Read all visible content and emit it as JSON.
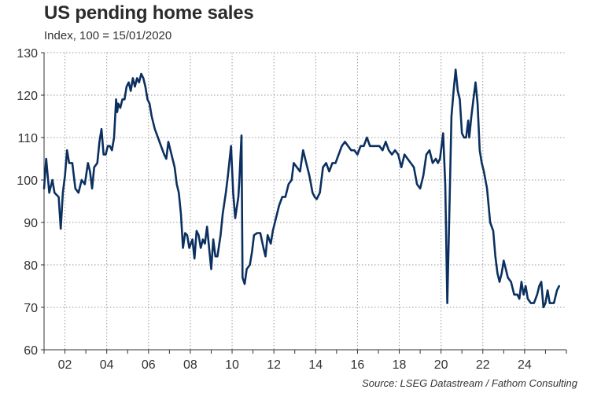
{
  "chart_data": {
    "type": "line",
    "title": "US pending home sales",
    "subtitle": "Index, 100 = 15/01/2020",
    "source": "Source: LSEG Datastream / Fathom Consulting",
    "xlabel": "",
    "ylabel": "",
    "ylim": [
      60,
      130
    ],
    "y_ticks": [
      60,
      70,
      80,
      90,
      100,
      110,
      120,
      130
    ],
    "x_range": [
      2001,
      2026
    ],
    "x_ticks": [
      {
        "value": 2002,
        "label": "02"
      },
      {
        "value": 2004,
        "label": "04"
      },
      {
        "value": 2006,
        "label": "06"
      },
      {
        "value": 2008,
        "label": "08"
      },
      {
        "value": 2010,
        "label": "10"
      },
      {
        "value": 2012,
        "label": "12"
      },
      {
        "value": 2014,
        "label": "14"
      },
      {
        "value": 2016,
        "label": "16"
      },
      {
        "value": 2018,
        "label": "18"
      },
      {
        "value": 2020,
        "label": "20"
      },
      {
        "value": 2022,
        "label": "22"
      },
      {
        "value": 2024,
        "label": "24"
      }
    ],
    "grid": true,
    "line_color": "#0b3060",
    "series": [
      {
        "name": "US pending home sales",
        "points": [
          [
            2001.0,
            98
          ],
          [
            2001.1,
            105
          ],
          [
            2001.25,
            97
          ],
          [
            2001.4,
            100
          ],
          [
            2001.5,
            97
          ],
          [
            2001.7,
            96
          ],
          [
            2001.8,
            88.5
          ],
          [
            2001.9,
            97
          ],
          [
            2002.0,
            101
          ],
          [
            2002.1,
            107
          ],
          [
            2002.2,
            104
          ],
          [
            2002.35,
            104
          ],
          [
            2002.5,
            98
          ],
          [
            2002.65,
            97
          ],
          [
            2002.8,
            100
          ],
          [
            2002.95,
            99
          ],
          [
            2003.1,
            104
          ],
          [
            2003.2,
            102
          ],
          [
            2003.3,
            98
          ],
          [
            2003.4,
            103
          ],
          [
            2003.55,
            104
          ],
          [
            2003.65,
            109
          ],
          [
            2003.75,
            112
          ],
          [
            2003.85,
            106
          ],
          [
            2003.95,
            106
          ],
          [
            2004.05,
            108
          ],
          [
            2004.15,
            108
          ],
          [
            2004.25,
            107
          ],
          [
            2004.35,
            110
          ],
          [
            2004.45,
            119
          ],
          [
            2004.5,
            116
          ],
          [
            2004.55,
            118
          ],
          [
            2004.65,
            117
          ],
          [
            2004.75,
            119
          ],
          [
            2004.85,
            119
          ],
          [
            2004.95,
            122
          ],
          [
            2005.05,
            123
          ],
          [
            2005.15,
            121
          ],
          [
            2005.25,
            124
          ],
          [
            2005.35,
            122
          ],
          [
            2005.45,
            124
          ],
          [
            2005.55,
            123
          ],
          [
            2005.65,
            125
          ],
          [
            2005.75,
            124
          ],
          [
            2005.85,
            122
          ],
          [
            2005.95,
            119
          ],
          [
            2006.05,
            118
          ],
          [
            2006.15,
            115
          ],
          [
            2006.3,
            112
          ],
          [
            2006.45,
            110
          ],
          [
            2006.6,
            108
          ],
          [
            2006.75,
            106
          ],
          [
            2006.85,
            105
          ],
          [
            2006.95,
            109
          ],
          [
            2007.1,
            106
          ],
          [
            2007.25,
            103
          ],
          [
            2007.35,
            99
          ],
          [
            2007.45,
            97
          ],
          [
            2007.55,
            92
          ],
          [
            2007.65,
            84
          ],
          [
            2007.75,
            87.5
          ],
          [
            2007.85,
            87
          ],
          [
            2007.95,
            84
          ],
          [
            2008.1,
            86
          ],
          [
            2008.2,
            81.5
          ],
          [
            2008.3,
            88
          ],
          [
            2008.4,
            87
          ],
          [
            2008.5,
            84
          ],
          [
            2008.6,
            86
          ],
          [
            2008.7,
            85
          ],
          [
            2008.8,
            89
          ],
          [
            2008.9,
            84
          ],
          [
            2009.0,
            79
          ],
          [
            2009.1,
            86
          ],
          [
            2009.2,
            82
          ],
          [
            2009.3,
            82
          ],
          [
            2009.45,
            87
          ],
          [
            2009.55,
            92
          ],
          [
            2009.7,
            97
          ],
          [
            2009.8,
            101
          ],
          [
            2009.95,
            108
          ],
          [
            2010.05,
            97
          ],
          [
            2010.15,
            91
          ],
          [
            2010.3,
            96
          ],
          [
            2010.35,
            100
          ],
          [
            2010.45,
            110.5
          ],
          [
            2010.5,
            77
          ],
          [
            2010.6,
            75.5
          ],
          [
            2010.7,
            79
          ],
          [
            2010.85,
            80
          ],
          [
            2010.95,
            83
          ],
          [
            2011.05,
            87
          ],
          [
            2011.2,
            87.5
          ],
          [
            2011.35,
            87.5
          ],
          [
            2011.5,
            84
          ],
          [
            2011.6,
            82
          ],
          [
            2011.7,
            87
          ],
          [
            2011.85,
            85
          ],
          [
            2011.95,
            88
          ],
          [
            2012.1,
            91
          ],
          [
            2012.25,
            94
          ],
          [
            2012.4,
            96
          ],
          [
            2012.55,
            96
          ],
          [
            2012.7,
            99
          ],
          [
            2012.85,
            100
          ],
          [
            2012.95,
            104
          ],
          [
            2013.1,
            103
          ],
          [
            2013.25,
            102
          ],
          [
            2013.4,
            107
          ],
          [
            2013.55,
            104
          ],
          [
            2013.7,
            101
          ],
          [
            2013.85,
            97
          ],
          [
            2013.95,
            96
          ],
          [
            2014.05,
            95.5
          ],
          [
            2014.2,
            97
          ],
          [
            2014.35,
            103
          ],
          [
            2014.5,
            104
          ],
          [
            2014.65,
            102
          ],
          [
            2014.8,
            104
          ],
          [
            2014.95,
            104
          ],
          [
            2015.1,
            106
          ],
          [
            2015.25,
            108
          ],
          [
            2015.4,
            109
          ],
          [
            2015.55,
            108
          ],
          [
            2015.7,
            107
          ],
          [
            2015.85,
            107
          ],
          [
            2016.0,
            106
          ],
          [
            2016.15,
            108
          ],
          [
            2016.3,
            108
          ],
          [
            2016.45,
            110
          ],
          [
            2016.6,
            108
          ],
          [
            2016.75,
            108
          ],
          [
            2016.9,
            108
          ],
          [
            2017.05,
            108
          ],
          [
            2017.2,
            107
          ],
          [
            2017.35,
            109
          ],
          [
            2017.5,
            107
          ],
          [
            2017.65,
            106
          ],
          [
            2017.8,
            107
          ],
          [
            2017.95,
            106
          ],
          [
            2018.1,
            103
          ],
          [
            2018.25,
            106
          ],
          [
            2018.4,
            105
          ],
          [
            2018.55,
            104
          ],
          [
            2018.7,
            103
          ],
          [
            2018.85,
            99
          ],
          [
            2019.0,
            98
          ],
          [
            2019.15,
            101
          ],
          [
            2019.3,
            106
          ],
          [
            2019.45,
            107
          ],
          [
            2019.6,
            104
          ],
          [
            2019.75,
            105
          ],
          [
            2019.85,
            104
          ],
          [
            2019.95,
            105
          ],
          [
            2020.1,
            111
          ],
          [
            2020.2,
            99
          ],
          [
            2020.3,
            71
          ],
          [
            2020.4,
            93
          ],
          [
            2020.5,
            115
          ],
          [
            2020.6,
            121
          ],
          [
            2020.7,
            126
          ],
          [
            2020.8,
            121
          ],
          [
            2020.9,
            119
          ],
          [
            2021.0,
            111
          ],
          [
            2021.1,
            110
          ],
          [
            2021.2,
            110
          ],
          [
            2021.3,
            114
          ],
          [
            2021.35,
            110
          ],
          [
            2021.45,
            115
          ],
          [
            2021.55,
            119
          ],
          [
            2021.65,
            123
          ],
          [
            2021.75,
            118
          ],
          [
            2021.85,
            107
          ],
          [
            2021.95,
            104
          ],
          [
            2022.05,
            102
          ],
          [
            2022.2,
            98
          ],
          [
            2022.35,
            90
          ],
          [
            2022.5,
            88
          ],
          [
            2022.6,
            82
          ],
          [
            2022.7,
            78
          ],
          [
            2022.8,
            76
          ],
          [
            2022.9,
            78
          ],
          [
            2023.0,
            81
          ],
          [
            2023.1,
            79
          ],
          [
            2023.2,
            77
          ],
          [
            2023.35,
            76
          ],
          [
            2023.5,
            73
          ],
          [
            2023.65,
            73
          ],
          [
            2023.75,
            72
          ],
          [
            2023.85,
            76
          ],
          [
            2023.95,
            73
          ],
          [
            2024.05,
            75
          ],
          [
            2024.15,
            72
          ],
          [
            2024.3,
            71
          ],
          [
            2024.45,
            71
          ],
          [
            2024.6,
            73
          ],
          [
            2024.7,
            75
          ],
          [
            2024.8,
            76
          ],
          [
            2024.9,
            70
          ],
          [
            2025.0,
            71
          ],
          [
            2025.1,
            74
          ],
          [
            2025.2,
            71
          ],
          [
            2025.3,
            71
          ],
          [
            2025.4,
            71
          ],
          [
            2025.55,
            74
          ],
          [
            2025.65,
            75
          ]
        ]
      }
    ]
  }
}
